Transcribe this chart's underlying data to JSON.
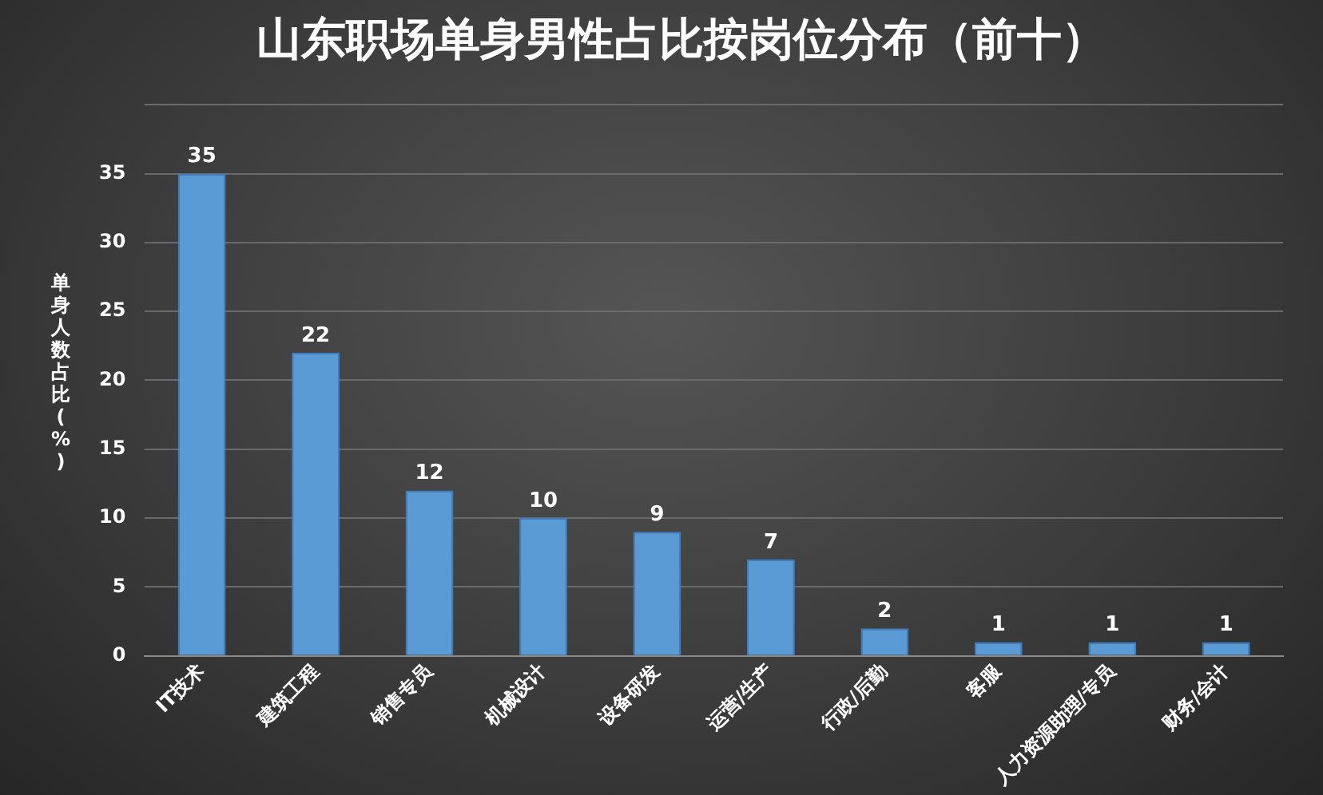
{
  "chart_data": {
    "type": "bar",
    "title": "山东职场单身男性占比按岗位分布（前十）",
    "ylabel": "单身人数占比(%)",
    "categories": [
      "IT技术",
      "建筑工程",
      "销售专员",
      "机械设计",
      "设备研发",
      "运营/生产",
      "行政/后勤",
      "客服",
      "人力资源助理/专员",
      "财务/会计"
    ],
    "values": [
      35,
      22,
      12,
      10,
      9,
      7,
      2,
      1,
      1,
      1
    ],
    "color": "#5b9bd5",
    "ylim": [
      0,
      40
    ],
    "yticks": [
      0,
      5,
      10,
      15,
      20,
      25,
      30,
      35,
      {
        "value": 40,
        "label": null
      }
    ],
    "grid": "y",
    "data_labels": true,
    "legend": false
  }
}
